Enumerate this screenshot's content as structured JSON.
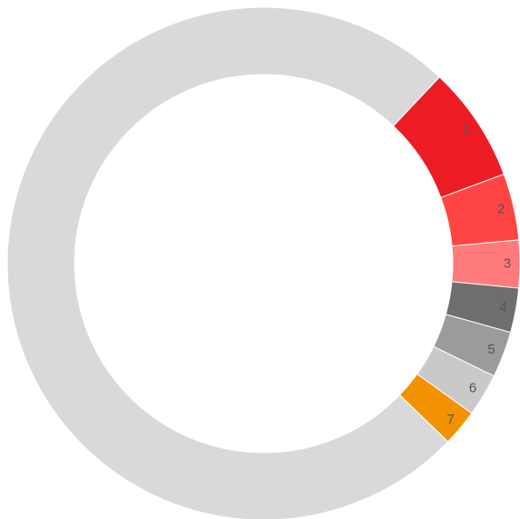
{
  "chart_data": {
    "type": "donut",
    "categories": [
      "1",
      "2",
      "3",
      "4",
      "5",
      "6",
      "7",
      null
    ],
    "values": [
      7.3,
      4.2,
      3,
      2.8,
      2.9,
      2.7,
      2.3,
      74.8
    ],
    "colors": [
      "#ed1c24",
      "#ff4444",
      "#ff7b7b",
      "#6e6e6e",
      "#9b9b9b",
      "#c9c9c9",
      "#f39200",
      "#d9d9d9"
    ]
  }
}
